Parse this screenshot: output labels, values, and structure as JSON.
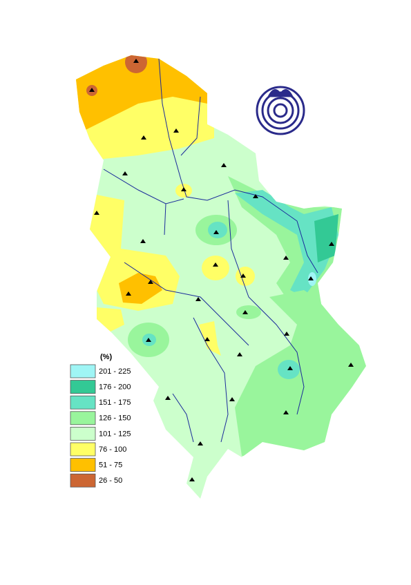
{
  "legend": {
    "title": "(%)",
    "items": [
      {
        "label": "201 - 225",
        "color": "#9ff5f5"
      },
      {
        "label": "176 - 200",
        "color": "#33c995"
      },
      {
        "label": "151 - 175",
        "color": "#66e3c4"
      },
      {
        "label": "126 - 150",
        "color": "#99f59c"
      },
      {
        "label": "101 - 125",
        "color": "#ccffcc"
      },
      {
        "label": "76 - 100",
        "color": "#ffff66"
      },
      {
        "label": "51 - 75",
        "color": "#ffc000"
      },
      {
        "label": "26 - 50",
        "color": "#cc6633"
      }
    ]
  }
}
